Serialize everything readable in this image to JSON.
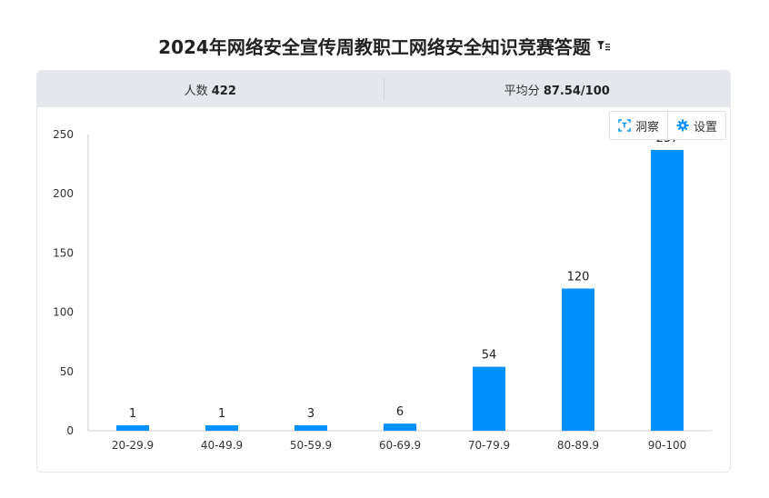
{
  "page": {
    "title": "2024年网络安全宣传周教职工网络安全知识竞赛答题",
    "filter_icon": "filter-icon"
  },
  "stats": {
    "count_label": "人数",
    "count_value": "422",
    "avg_label": "平均分",
    "avg_value": "87.54/100"
  },
  "toolbar": {
    "insight_label": "洞察",
    "insight_icon": "scan-icon",
    "settings_label": "设置",
    "settings_icon": "gear-icon"
  },
  "colors": {
    "bar": "#0091ff",
    "axis": "#c9cdd4",
    "header_bg": "#e4e7eb"
  },
  "chart_data": {
    "type": "bar",
    "categories": [
      "20-29.9",
      "40-49.9",
      "50-59.9",
      "60-69.9",
      "70-79.9",
      "80-89.9",
      "90-100"
    ],
    "values": [
      1,
      1,
      3,
      6,
      54,
      120,
      237
    ],
    "title": "",
    "xlabel": "",
    "ylabel": "",
    "ylim": [
      0,
      250
    ],
    "yticks": [
      0,
      50,
      100,
      150,
      200,
      250
    ],
    "grid": false,
    "legend": "none",
    "data_labels": true
  }
}
